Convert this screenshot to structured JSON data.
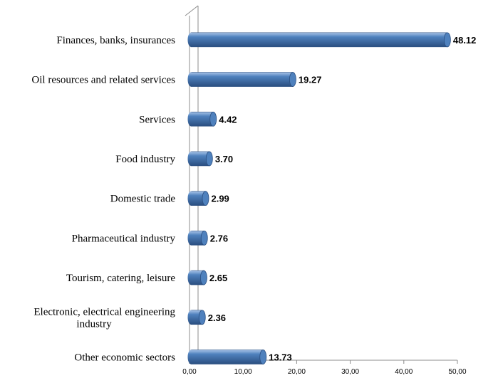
{
  "chart_data": {
    "type": "bar",
    "orientation": "horizontal",
    "categories": [
      "Finances, banks, insurances",
      "Oil resources and related services",
      "Services",
      "Food industry",
      "Domestic trade",
      "Pharmaceutical industry",
      "Tourism, catering, leisure",
      "Electronic, electrical engineering industry",
      "Other economic sectors"
    ],
    "category_lines": [
      [
        "Finances, banks, insurances"
      ],
      [
        "Oil resources and related services"
      ],
      [
        "Services"
      ],
      [
        "Food industry"
      ],
      [
        "Domestic trade"
      ],
      [
        "Pharmaceutical industry"
      ],
      [
        "Tourism, catering, leisure"
      ],
      [
        "Electronic, electrical engineering",
        "industry"
      ],
      [
        "Other economic sectors"
      ]
    ],
    "values": [
      48.12,
      19.27,
      4.42,
      3.7,
      2.99,
      2.76,
      2.65,
      2.36,
      13.73
    ],
    "value_labels": [
      "48.12",
      "19.27",
      "4.42",
      "3.70",
      "2.99",
      "2.76",
      "2.65",
      "2.36",
      "13.73"
    ],
    "xlim": [
      0,
      50
    ],
    "x_ticks": [
      0,
      10,
      20,
      30,
      40,
      50
    ],
    "x_tick_labels": [
      "0,00",
      "10,00",
      "20,00",
      "30,00",
      "40,00",
      "50,00"
    ],
    "title": "",
    "xlabel": "",
    "ylabel": "",
    "grid": false,
    "legend": "none",
    "bar_color": "#4f81bd",
    "bar_dark": "#2a4e80",
    "bar_light": "#a9c4e8"
  }
}
